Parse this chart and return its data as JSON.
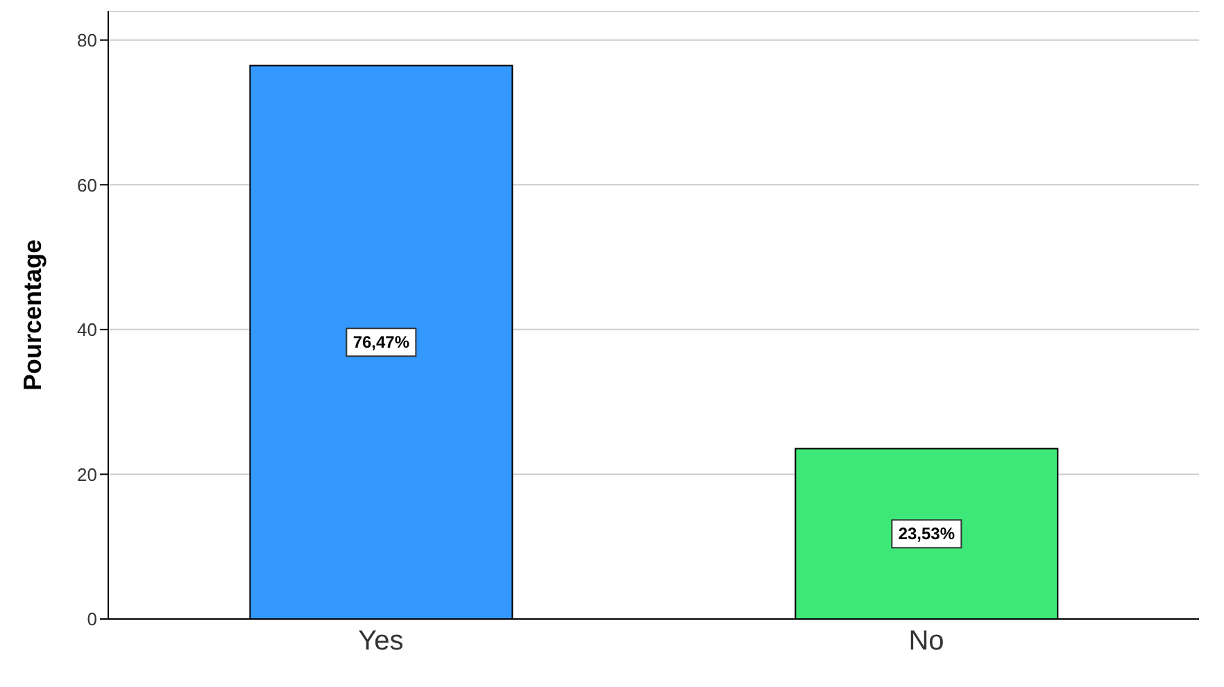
{
  "chart_data": {
    "type": "bar",
    "ylabel": "Pourcentage",
    "categories": [
      "Yes",
      "No"
    ],
    "values": [
      76.47,
      23.53
    ],
    "colors": [
      "#3399ff",
      "#3ee878"
    ],
    "value_labels": [
      "76,47%",
      "23,53%"
    ],
    "ylim": [
      0,
      84
    ],
    "yticks": [
      0,
      20,
      40,
      60,
      80
    ],
    "grid": "y"
  }
}
